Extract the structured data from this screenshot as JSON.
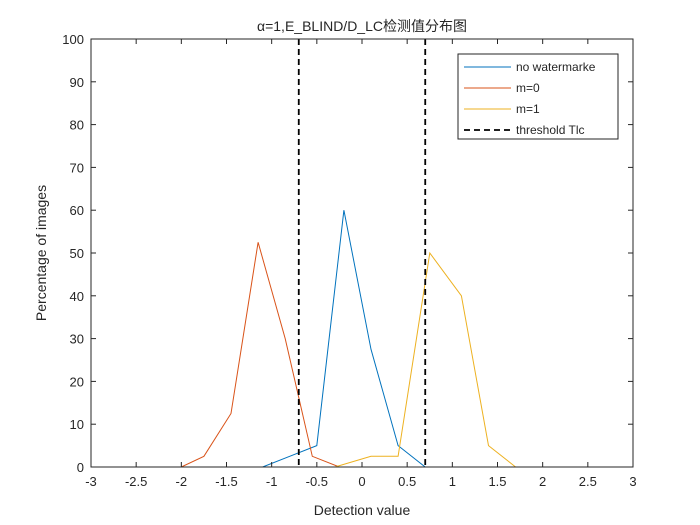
{
  "chart_data": {
    "type": "line",
    "title": "α=1,E_BLIND/D_LC检测值分布图",
    "xlabel": "Detection value",
    "ylabel": "Percentage of images",
    "xlim": [
      -3,
      3
    ],
    "ylim": [
      0,
      100
    ],
    "xticks": [
      -3,
      -2.5,
      -2,
      -1.5,
      -1,
      -0.5,
      0,
      0.5,
      1,
      1.5,
      2,
      2.5,
      3
    ],
    "xtick_labels": [
      "-3",
      "-2.5",
      "-2",
      "-1.5",
      "-1",
      "-0.5",
      "0",
      "0.5",
      "1",
      "1.5",
      "2",
      "2.5",
      "3"
    ],
    "yticks": [
      0,
      10,
      20,
      30,
      40,
      50,
      60,
      70,
      80,
      90,
      100
    ],
    "ytick_labels": [
      "0",
      "10",
      "20",
      "30",
      "40",
      "50",
      "60",
      "70",
      "80",
      "90",
      "100"
    ],
    "grid": false,
    "legend_position": "top-right",
    "series": [
      {
        "name": "no watermarke",
        "color": "#0072BD",
        "style": "solid",
        "x": [
          -3,
          -1.1,
          -0.8,
          -0.5,
          -0.2,
          0.1,
          0.4,
          0.7,
          1.0,
          3
        ],
        "y": [
          0,
          0,
          2.5,
          5,
          60,
          27.5,
          5,
          0,
          0,
          0
        ]
      },
      {
        "name": "m=0",
        "color": "#D95319",
        "style": "solid",
        "x": [
          -3,
          -2.0,
          -1.75,
          -1.45,
          -1.15,
          -0.85,
          -0.55,
          -0.25,
          0,
          3
        ],
        "y": [
          0,
          0,
          2.5,
          12.5,
          52.5,
          30,
          2.5,
          0,
          0,
          0
        ]
      },
      {
        "name": "m=1",
        "color": "#EDB120",
        "style": "solid",
        "x": [
          -3,
          -0.3,
          0.1,
          0.4,
          0.75,
          1.1,
          1.4,
          1.7,
          3
        ],
        "y": [
          0,
          0,
          2.5,
          2.5,
          50,
          40,
          5,
          0,
          0
        ]
      },
      {
        "name": "threshold Tlc",
        "color": "#000000",
        "style": "dashed",
        "verticals": [
          -0.7,
          0.7
        ]
      }
    ]
  }
}
